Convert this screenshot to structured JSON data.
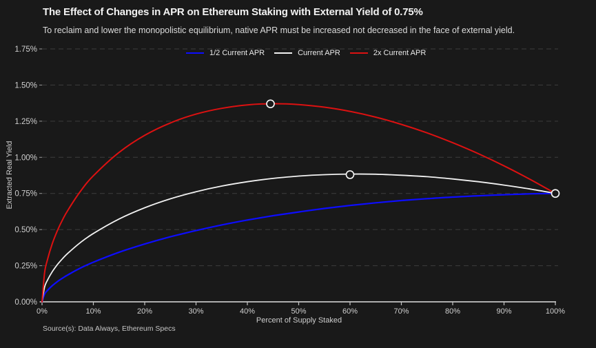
{
  "header": {
    "title": "The Effect of Changes in APR on Ethereum Staking with External Yield of 0.75%",
    "subtitle": "To reclaim and lower the monopolistic equilibrium, native APR must be increased not decreased in the face of external yield."
  },
  "source": "Source(s): Data Always, Ethereum Specs",
  "colors": {
    "background": "#191919",
    "grid": "#3d3d3d",
    "axis": "#c4c4c4",
    "tick_text": "#cfcfcf",
    "marker_ring": "#f5f5f5"
  },
  "chart_data": {
    "type": "line",
    "title": "The Effect of Changes in APR on Ethereum Staking with External Yield of 0.75%",
    "subtitle": "To reclaim and lower the monopolistic equilibrium, native APR must be increased not decreased in the face of external yield.",
    "xlabel": "Percent of Supply Staked",
    "ylabel": "Extracted Real Yield",
    "xlim": [
      0,
      100
    ],
    "ylim": [
      0,
      1.75
    ],
    "grid": "horizontal-dashed",
    "legend_position": "top-center",
    "xtick_values": [
      0,
      10,
      20,
      30,
      40,
      50,
      60,
      70,
      80,
      90,
      100
    ],
    "xtick_labels": [
      "0%",
      "10%",
      "20%",
      "30%",
      "40%",
      "50%",
      "60%",
      "70%",
      "80%",
      "90%",
      "100%"
    ],
    "ytick_values": [
      0,
      0.25,
      0.5,
      0.75,
      1.0,
      1.25,
      1.5,
      1.75
    ],
    "ytick_labels": [
      "0.00%",
      "0.25%",
      "0.50%",
      "0.75%",
      "1.00%",
      "1.25%",
      "1.50%",
      "1.75%"
    ],
    "x": [
      0,
      0.5,
      1,
      2,
      3,
      4,
      5,
      7.5,
      10,
      15,
      20,
      25,
      30,
      35,
      40,
      45,
      50,
      55,
      60,
      65,
      70,
      75,
      80,
      85,
      90,
      95,
      100
    ],
    "series": [
      {
        "name": "1/2 Current APR",
        "color": "#0d0dff",
        "width": 2.2,
        "values": [
          0,
          0.053,
          0.077,
          0.112,
          0.14,
          0.164,
          0.186,
          0.234,
          0.274,
          0.343,
          0.4,
          0.45,
          0.493,
          0.532,
          0.566,
          0.596,
          0.622,
          0.646,
          0.667,
          0.685,
          0.701,
          0.714,
          0.725,
          0.734,
          0.741,
          0.747,
          0.75
        ]
      },
      {
        "name": "Current APR",
        "color": "#f2f2f2",
        "width": 1.8,
        "values": [
          0,
          0.102,
          0.146,
          0.209,
          0.258,
          0.299,
          0.335,
          0.411,
          0.473,
          0.573,
          0.651,
          0.713,
          0.762,
          0.801,
          0.831,
          0.854,
          0.87,
          0.88,
          0.884,
          0.883,
          0.876,
          0.866,
          0.85,
          0.831,
          0.808,
          0.781,
          0.75
        ]
      },
      {
        "name": "2x Current APR",
        "color": "#dd1111",
        "width": 2.0,
        "values": [
          0,
          0.201,
          0.285,
          0.403,
          0.493,
          0.568,
          0.632,
          0.766,
          0.872,
          1.034,
          1.152,
          1.238,
          1.299,
          1.339,
          1.363,
          1.371,
          1.365,
          1.347,
          1.318,
          1.278,
          1.228,
          1.169,
          1.101,
          1.025,
          0.941,
          0.849,
          0.75
        ]
      }
    ],
    "markers": [
      {
        "x": 44.5,
        "y": 1.37,
        "note": "2x Current APR peak"
      },
      {
        "x": 60,
        "y": 0.88,
        "note": "Current APR peak"
      },
      {
        "x": 100,
        "y": 0.75,
        "note": "all curves converge at external yield"
      }
    ]
  }
}
